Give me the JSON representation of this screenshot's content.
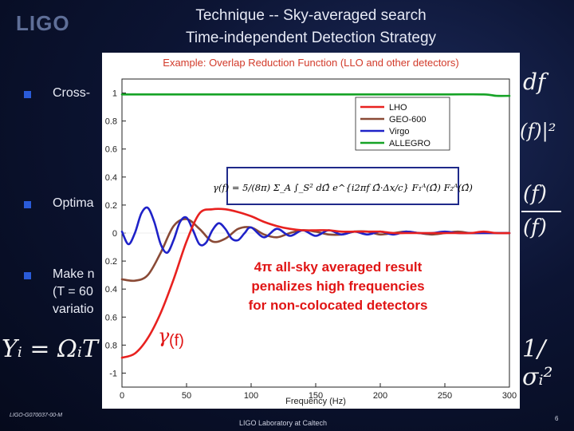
{
  "slide": {
    "logo": "LIGO",
    "title_line1": "Technique -- Sky-averaged search",
    "title_line2": "Time-independent Detection Strategy",
    "bullets": [
      "Cross-",
      "Optima",
      "Make n",
      "(T = 60",
      "variatio"
    ],
    "right_math": [
      "df",
      "(f)|²",
      "(f)",
      "(f)"
    ],
    "left_math_bottom": "Yᵢ = ΩᵢT",
    "right_math_bottom": "1/σᵢ²",
    "footer_left": "LIGO-G070037-00-M",
    "footer_center": "LIGO Laboratory at Caltech",
    "page_number": "6"
  },
  "colors": {
    "LHO": "#e8211f",
    "GEO-600": "#8a4a36",
    "Virgo": "#1f22c8",
    "ALLEGRO": "#16a326",
    "annotation": "#e01515"
  },
  "chart_data": {
    "type": "line",
    "title": "Example: Overlap Reduction Function (LLO and other detectors)",
    "xlabel": "Frequency (Hz)",
    "ylabel": "",
    "xlim": [
      0,
      300
    ],
    "ylim": [
      -1.1,
      1.1
    ],
    "xticks": [
      0,
      50,
      100,
      150,
      200,
      250,
      300
    ],
    "xtick_labels": [
      "0",
      "50",
      "100",
      "150",
      "200",
      "250",
      "300"
    ],
    "yticks": [
      1,
      0.8,
      0.6,
      0.4,
      0.2,
      0,
      -0.2,
      -0.4,
      -0.6,
      -0.8,
      -1
    ],
    "ytick_labels": [
      "1",
      "0.8",
      "0.6",
      "0.4",
      "0.2",
      "0",
      "0.2",
      "0.4",
      "0.6",
      "0.8",
      "-1"
    ],
    "legend": [
      "LHO",
      "GEO-600",
      "Virgo",
      "ALLEGRO"
    ],
    "legend_position": "top-right",
    "formula": "γ(f) = 5/(8π) Σ_A ∫_S² dΩ̂ e^{i2πf Ω̂·Δx/c} F₁ᴬ(Ω̂) F₂ᴬ(Ω̂)",
    "annotation": "4π all-sky averaged result penalizes high frequencies for non-colocated detectors",
    "annotation_lines": [
      "4π all-sky averaged result",
      "penalizes high frequencies",
      "for non-colocated detectors"
    ],
    "gamma_label": "γ",
    "gamma_suffix": "(f)",
    "series": [
      {
        "name": "LHO",
        "x": [
          0,
          10,
          20,
          30,
          40,
          50,
          60,
          70,
          80,
          90,
          100,
          110,
          120,
          130,
          140,
          150,
          160,
          170,
          180,
          190,
          200,
          210,
          220,
          230,
          240,
          250,
          260,
          270,
          280,
          290,
          300
        ],
        "y": [
          -0.89,
          -0.86,
          -0.75,
          -0.57,
          -0.33,
          -0.06,
          0.14,
          0.17,
          0.17,
          0.15,
          0.12,
          0.08,
          0.05,
          0.03,
          0.02,
          0.02,
          0.02,
          0.01,
          0.01,
          0.01,
          0.01,
          0.0,
          0.0,
          0.0,
          0.0,
          0.0,
          0.0,
          0.0,
          0.01,
          0.0,
          0.0
        ]
      },
      {
        "name": "GEO-600",
        "x": [
          0,
          10,
          20,
          30,
          40,
          50,
          60,
          70,
          80,
          90,
          100,
          110,
          120,
          130,
          140,
          150,
          160,
          170,
          180,
          190,
          200,
          210,
          220,
          230,
          240,
          250,
          260,
          270,
          280,
          290,
          300
        ],
        "y": [
          -0.33,
          -0.34,
          -0.3,
          -0.14,
          0.05,
          0.1,
          0.03,
          -0.06,
          -0.04,
          0.03,
          0.04,
          -0.01,
          -0.03,
          0.0,
          0.02,
          0.01,
          -0.01,
          -0.01,
          0.01,
          0.01,
          -0.01,
          0.0,
          0.01,
          0.0,
          -0.01,
          0.0,
          0.01,
          0.0,
          0.0,
          0.0,
          0.0
        ]
      },
      {
        "name": "Virgo",
        "x": [
          0,
          5,
          10,
          15,
          20,
          25,
          30,
          35,
          40,
          45,
          50,
          55,
          60,
          65,
          70,
          75,
          80,
          85,
          90,
          95,
          100,
          110,
          120,
          130,
          140,
          150,
          160,
          170,
          180,
          190,
          200,
          210,
          220,
          230,
          240,
          250,
          260,
          270,
          280,
          290,
          300
        ],
        "y": [
          0.01,
          -0.08,
          0.0,
          0.14,
          0.18,
          0.08,
          -0.08,
          -0.14,
          -0.05,
          0.08,
          0.11,
          0.02,
          -0.08,
          -0.07,
          0.02,
          0.07,
          0.03,
          -0.04,
          -0.05,
          0.0,
          0.04,
          -0.03,
          0.03,
          -0.02,
          0.02,
          -0.02,
          0.02,
          -0.01,
          0.01,
          -0.01,
          0.01,
          -0.01,
          0.01,
          0.0,
          0.0,
          0.01,
          0.0,
          0.0,
          0.0,
          0.0,
          0.0
        ]
      },
      {
        "name": "ALLEGRO",
        "x": [
          0,
          50,
          100,
          150,
          200,
          250,
          280,
          290,
          300
        ],
        "y": [
          0.99,
          0.99,
          0.99,
          0.99,
          0.99,
          0.99,
          0.99,
          0.98,
          0.98
        ]
      }
    ]
  }
}
